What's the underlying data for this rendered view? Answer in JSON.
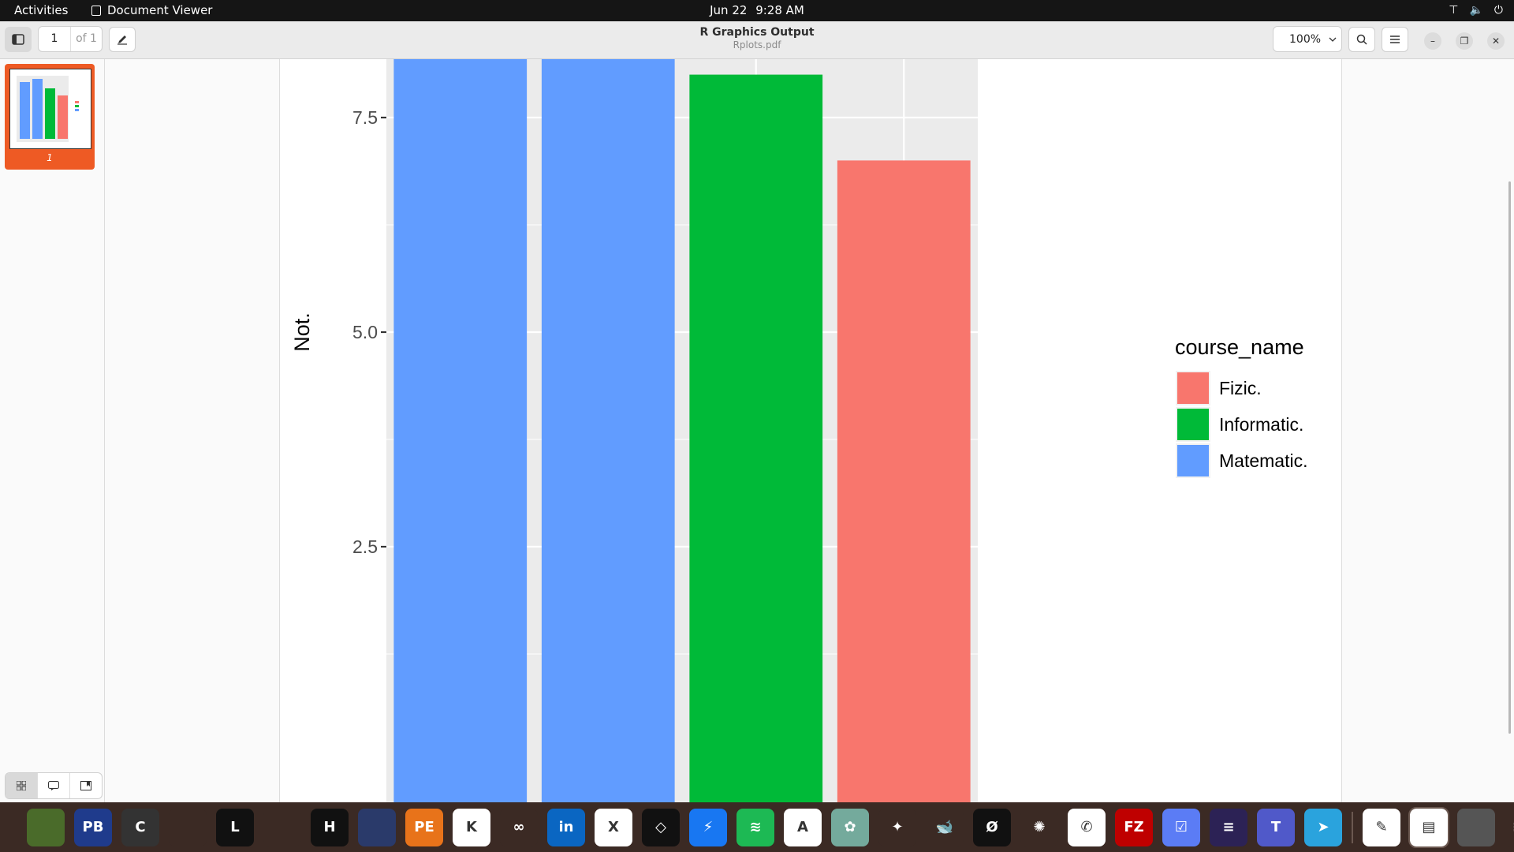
{
  "topbar": {
    "activities": "Activities",
    "app_name": "Document Viewer",
    "date": "Jun 22",
    "time": "9:28 AM",
    "tray_icons": [
      "network-icon",
      "volume-icon",
      "power-icon"
    ]
  },
  "header": {
    "title": "R Graphics Output",
    "subtitle": "Rplots.pdf",
    "page_number": "1",
    "page_of": "of 1",
    "zoom": "100%"
  },
  "sidebar": {
    "thumbnail_label": "1",
    "view_modes": [
      "thumbnails-icon",
      "outline-icon",
      "bookmarks-icon"
    ]
  },
  "chart_data": {
    "type": "bar",
    "categories": [
      "",
      "",
      "",
      ""
    ],
    "values": [
      8.95,
      9,
      8,
      7
    ],
    "bar_colors": [
      "#619CFF",
      "#619CFF",
      "#00BA38",
      "#F8766D"
    ],
    "ylabel": "Not.",
    "y_ticks": [
      "2.5",
      "5.0",
      "7.5"
    ],
    "ylim_visible": [
      0.5,
      9.0
    ],
    "grid": true,
    "panel_background": "#EBEBEB",
    "legend": {
      "title": "course_name",
      "position": "right",
      "entries": [
        {
          "label": "Fizic.",
          "color": "#F8766D"
        },
        {
          "label": "Informatic.",
          "color": "#00BA38"
        },
        {
          "label": "Matematic.",
          "color": "#619CFF"
        }
      ]
    }
  },
  "dock": {
    "apps": [
      {
        "name": "tux-icon",
        "color": "#4a6b2a",
        "label": ""
      },
      {
        "name": "powerbi-icon",
        "color": "#1f3b8c",
        "label": "PB"
      },
      {
        "name": "clion-icon",
        "color": "#333333",
        "label": "C"
      },
      {
        "name": "chart-app-icon",
        "color": "#3b2a24",
        "label": ""
      },
      {
        "name": "leetcode-icon",
        "color": "#111111",
        "label": "L"
      },
      {
        "name": "spider-icon",
        "color": "#3b2a24",
        "label": ""
      },
      {
        "name": "hackerrank-icon",
        "color": "#111111",
        "label": "H"
      },
      {
        "name": "chrome-app-icon",
        "color": "#2a3a6a",
        "label": ""
      },
      {
        "name": "pe-icon",
        "color": "#e8731a",
        "label": "PE"
      },
      {
        "name": "kaggle-icon",
        "color": "#ffffff",
        "label": "K"
      },
      {
        "name": "geeksforgeeks-icon",
        "color": "#3b2a24",
        "label": "∞"
      },
      {
        "name": "linkedin-icon",
        "color": "#0a66c2",
        "label": "in"
      },
      {
        "name": "xing-icon",
        "color": "#ffffff",
        "label": "X"
      },
      {
        "name": "unity-icon",
        "color": "#111111",
        "label": "◇"
      },
      {
        "name": "messenger-icon",
        "color": "#1877f2",
        "label": "⚡"
      },
      {
        "name": "spotify-icon",
        "color": "#1db954",
        "label": "≋"
      },
      {
        "name": "appstore-icon",
        "color": "#ffffff",
        "label": "A"
      },
      {
        "name": "chatgpt-icon",
        "color": "#74aa9c",
        "label": "✿"
      },
      {
        "name": "gemini-icon",
        "color": "#3b2a24",
        "label": "✦"
      },
      {
        "name": "deepseek-icon",
        "color": "#3b2a24",
        "label": "🐋"
      },
      {
        "name": "perplexity-icon",
        "color": "#111111",
        "label": "Ø"
      },
      {
        "name": "claude-icon",
        "color": "#3b2a24",
        "label": "✺"
      },
      {
        "name": "whatsapp-icon",
        "color": "#ffffff",
        "label": "✆"
      },
      {
        "name": "filezilla-icon",
        "color": "#bf0000",
        "label": "FZ"
      },
      {
        "name": "tasks-icon",
        "color": "#5b7cf5",
        "label": "☑"
      },
      {
        "name": "eclipse-icon",
        "color": "#2c2255",
        "label": "≡"
      },
      {
        "name": "teams-icon",
        "color": "#5059c9",
        "label": "T"
      },
      {
        "name": "telegram-icon",
        "color": "#2aa3dd",
        "label": "➤"
      },
      {
        "name": "text-editor-icon",
        "color": "#ffffff",
        "label": "✎"
      },
      {
        "name": "document-viewer-icon",
        "color": "#ffffff",
        "label": "▤"
      },
      {
        "name": "trash-icon",
        "color": "#555555",
        "label": ""
      },
      {
        "name": "show-apps-icon",
        "color": "#3b2a24",
        "label": "⋮⋮⋮"
      }
    ]
  }
}
